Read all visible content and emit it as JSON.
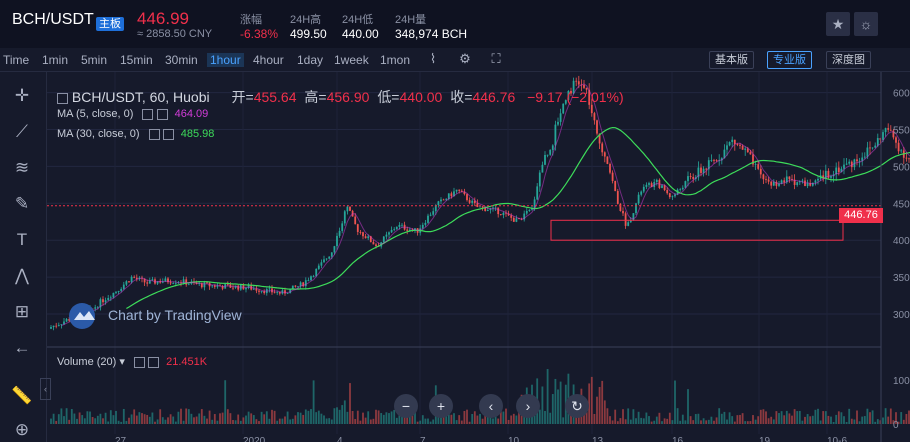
{
  "header": {
    "pair": "BCH/USDT",
    "badge": "主板",
    "price": "446.99",
    "cny": "≈ 2858.50 CNY",
    "stats": [
      {
        "label": "涨幅",
        "value": "-6.38%",
        "neg": true
      },
      {
        "label": "24H高",
        "value": "499.50",
        "neg": false
      },
      {
        "label": "24H低",
        "value": "440.00",
        "neg": false
      },
      {
        "label": "24H量",
        "value": "348,974 BCH",
        "neg": false
      }
    ],
    "star_icon": "star-icon",
    "theme_icon": "sun-icon"
  },
  "toolbar": {
    "time_label": "Time",
    "intervals": [
      "1min",
      "5min",
      "15min",
      "30min",
      "1hour",
      "4hour",
      "1day",
      "1week",
      "1mon"
    ],
    "active_interval": "1hour",
    "views": [
      "基本版",
      "专业版",
      "深度图"
    ],
    "active_view": "专业版"
  },
  "draw_tools": [
    "crosshair-icon",
    "trend-line-icon",
    "fib-icon",
    "brush-icon",
    "text-icon",
    "pattern-icon",
    "measure-icon",
    "back-arrow-icon",
    "ruler-icon",
    "zoom-icon"
  ],
  "legend": {
    "symbol": "BCH/USDT, 60, Huobi",
    "open_label": "开=",
    "open": "455.64",
    "high_label": "高=",
    "high": "456.90",
    "low_label": "低=",
    "low": "440.00",
    "close_label": "收=",
    "close": "446.76",
    "change": "−9.17 (−2.01%)",
    "ma5_label": "MA (5, close, 0)",
    "ma5": "464.09",
    "ma5_color": "#d23cd8",
    "ma30_label": "MA (30, close, 0)",
    "ma30": "485.98",
    "ma30_color": "#3ddc5a",
    "volume_label": "Volume (20)",
    "volume": "21.451K"
  },
  "watermark": "Chart by TradingView",
  "current_price_tag": "446.76",
  "colors": {
    "up": "#26a69a",
    "down": "#ef5350",
    "bg": "#161a2b",
    "accent": "#4aa2ff"
  },
  "chart_data": {
    "type": "candlestick",
    "ylim": [
      262,
      628
    ],
    "y_ticks": [
      300,
      350,
      400,
      450,
      500,
      550,
      600
    ],
    "y_tick_labels": [
      "300.00",
      "350.00",
      "400.00",
      "450.00",
      "500.00",
      "550.00",
      "600.00"
    ],
    "x_tick_labels": [
      "27",
      "2020",
      "4",
      "7",
      "10",
      "13",
      "16",
      "19",
      "10-6"
    ],
    "volume_ticks": [
      "100K",
      "0"
    ],
    "current_price": 446.76,
    "highlight_box": {
      "y_low": 400,
      "y_high": 427
    },
    "price_path_keypoints": [
      [
        0,
        280
      ],
      [
        20,
        292
      ],
      [
        40,
        300
      ],
      [
        55,
        318
      ],
      [
        70,
        332
      ],
      [
        85,
        350
      ],
      [
        100,
        342
      ],
      [
        115,
        345
      ],
      [
        130,
        345
      ],
      [
        150,
        340
      ],
      [
        170,
        338
      ],
      [
        200,
        336
      ],
      [
        235,
        328
      ],
      [
        255,
        340
      ],
      [
        270,
        360
      ],
      [
        285,
        385
      ],
      [
        300,
        445
      ],
      [
        310,
        415
      ],
      [
        330,
        392
      ],
      [
        350,
        420
      ],
      [
        370,
        412
      ],
      [
        390,
        448
      ],
      [
        410,
        468
      ],
      [
        430,
        445
      ],
      [
        450,
        440
      ],
      [
        470,
        426
      ],
      [
        485,
        442
      ],
      [
        495,
        505
      ],
      [
        505,
        530
      ],
      [
        510,
        560
      ],
      [
        520,
        600
      ],
      [
        530,
        615
      ],
      [
        540,
        600
      ],
      [
        550,
        540
      ],
      [
        560,
        510
      ],
      [
        570,
        455
      ],
      [
        580,
        418
      ],
      [
        595,
        470
      ],
      [
        610,
        478
      ],
      [
        625,
        458
      ],
      [
        640,
        480
      ],
      [
        655,
        495
      ],
      [
        670,
        510
      ],
      [
        685,
        535
      ],
      [
        700,
        518
      ],
      [
        712,
        488
      ],
      [
        725,
        476
      ],
      [
        745,
        482
      ],
      [
        765,
        474
      ],
      [
        785,
        494
      ],
      [
        805,
        505
      ],
      [
        825,
        525
      ],
      [
        840,
        552
      ],
      [
        855,
        520
      ],
      [
        870,
        498
      ],
      [
        885,
        478
      ],
      [
        896,
        446.76
      ]
    ]
  }
}
